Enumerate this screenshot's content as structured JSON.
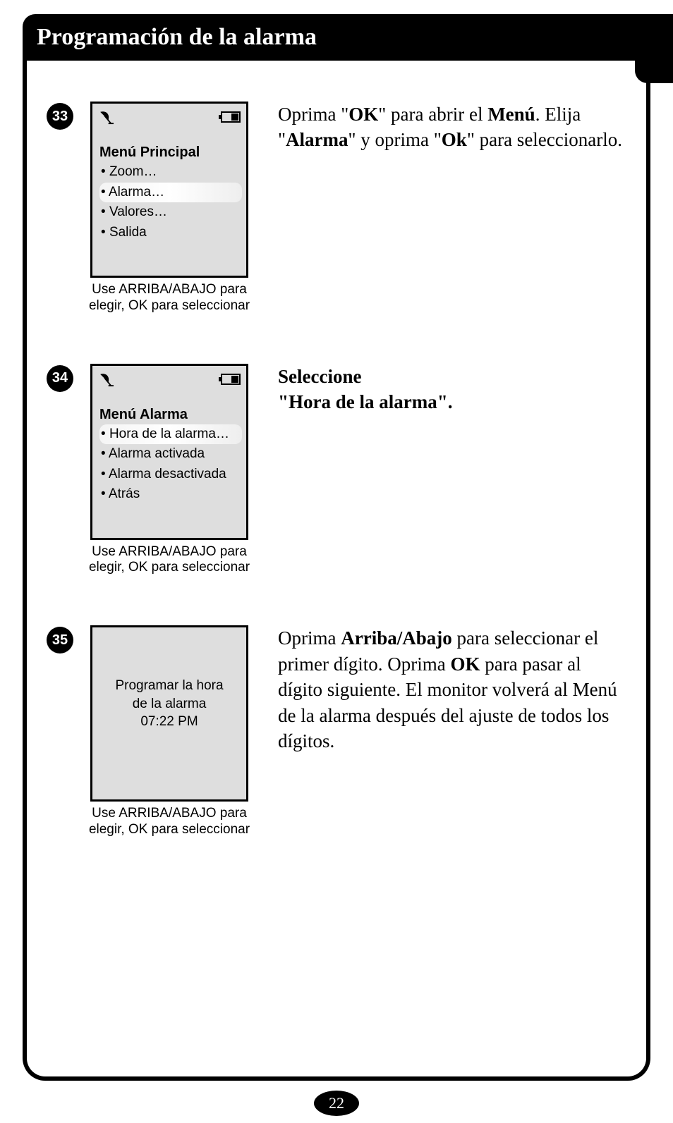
{
  "page": {
    "title": "Programación de la alarma",
    "number": "22"
  },
  "common": {
    "caption": "Use ARRIBA/ABAJO para elegir, OK para seleccionar"
  },
  "steps": [
    {
      "num": "33",
      "screen": {
        "title": "Menú Principal",
        "items": [
          "Zoom…",
          "Alarma…",
          "Valores…",
          "Salida"
        ],
        "highlight_index": 1,
        "show_status": true
      },
      "instruction_html": "Oprima \"<b>OK</b>\" para abrir el <b>Menú</b>. Elija \"<b>Alarma</b>\" y oprima \"<b>Ok</b>\" para seleccionarlo."
    },
    {
      "num": "34",
      "screen": {
        "title": "Menú Alarma",
        "items": [
          "Hora de la alarma…",
          "Alarma activada",
          "Alarma desactivada",
          "Atrás"
        ],
        "highlight_index": 0,
        "show_status": true
      },
      "instruction_html": "<b>Seleccione<br>\"Hora de la alarma\".</b>"
    },
    {
      "num": "35",
      "screen": {
        "centered_lines": [
          "Programar la hora",
          "de la alarma",
          "07:22 PM"
        ],
        "show_status": false
      },
      "instruction_html": "Oprima <b>Arriba/Abajo</b> para seleccionar el primer dígito. Oprima <b>OK</b> para pasar al dígito siguiente. El monitor volverá al Menú de la alarma después del ajuste de todos los dígitos."
    }
  ]
}
